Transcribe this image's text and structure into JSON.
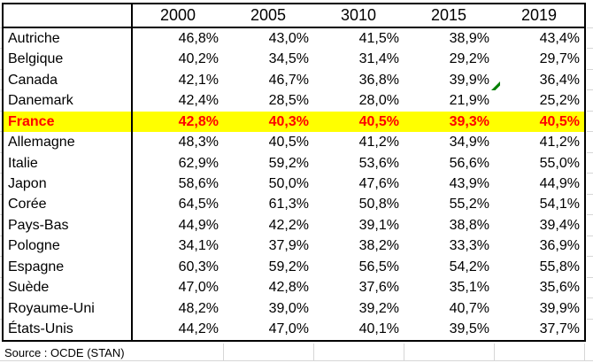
{
  "table": {
    "corner_label": "",
    "columns": [
      "2000",
      "2005",
      "3010",
      "2015",
      "2019"
    ],
    "rows": [
      {
        "country": "Autriche",
        "values": [
          "46,8%",
          "43,0%",
          "41,5%",
          "38,9%",
          "43,4%"
        ],
        "highlight": false
      },
      {
        "country": "Belgique",
        "values": [
          "40,2%",
          "34,5%",
          "31,4%",
          "29,2%",
          "29,7%"
        ],
        "highlight": false
      },
      {
        "country": "Canada",
        "values": [
          "42,1%",
          "46,7%",
          "36,8%",
          "39,9%",
          "36,4%"
        ],
        "highlight": false
      },
      {
        "country": "Danemark",
        "values": [
          "42,4%",
          "28,5%",
          "28,0%",
          "21,9%",
          "25,2%"
        ],
        "highlight": false
      },
      {
        "country": "France",
        "values": [
          "42,8%",
          "40,3%",
          "40,5%",
          "39,3%",
          "40,5%"
        ],
        "highlight": true
      },
      {
        "country": "Allemagne",
        "values": [
          "48,3%",
          "40,5%",
          "41,2%",
          "34,9%",
          "41,2%"
        ],
        "highlight": false
      },
      {
        "country": "Italie",
        "values": [
          "62,9%",
          "59,2%",
          "53,6%",
          "56,6%",
          "55,0%"
        ],
        "highlight": false
      },
      {
        "country": "Japon",
        "values": [
          "58,6%",
          "50,0%",
          "47,6%",
          "43,9%",
          "44,9%"
        ],
        "highlight": false
      },
      {
        "country": "Corée",
        "values": [
          "64,5%",
          "61,3%",
          "50,8%",
          "55,2%",
          "54,1%"
        ],
        "highlight": false
      },
      {
        "country": "Pays-Bas",
        "values": [
          "44,9%",
          "42,2%",
          "39,1%",
          "38,8%",
          "39,4%"
        ],
        "highlight": false
      },
      {
        "country": "Pologne",
        "values": [
          "34,1%",
          "37,9%",
          "38,2%",
          "33,3%",
          "36,9%"
        ],
        "highlight": false
      },
      {
        "country": "Espagne",
        "values": [
          "60,3%",
          "59,2%",
          "56,5%",
          "54,2%",
          "55,8%"
        ],
        "highlight": false
      },
      {
        "country": "Suède",
        "values": [
          "47,0%",
          "42,8%",
          "37,6%",
          "35,1%",
          "35,6%"
        ],
        "highlight": false
      },
      {
        "country": "Royaume-Uni",
        "values": [
          "48,2%",
          "39,0%",
          "39,2%",
          "40,7%",
          "39,9%"
        ],
        "highlight": false
      },
      {
        "country": "États-Unis",
        "values": [
          "44,2%",
          "47,0%",
          "40,1%",
          "39,5%",
          "37,7%"
        ],
        "highlight": false
      }
    ],
    "marker": {
      "row": "Danemark",
      "column": "2015",
      "icon": "green-arrow-icon"
    }
  },
  "footer": {
    "source_label": "Source : OCDE (STAN)"
  },
  "colors": {
    "highlight_bg": "#FFFF00",
    "highlight_text": "#FF0000",
    "text": "#000000",
    "border": "#000000",
    "gridline": "#D6D6D6",
    "marker_green": "#008000"
  }
}
